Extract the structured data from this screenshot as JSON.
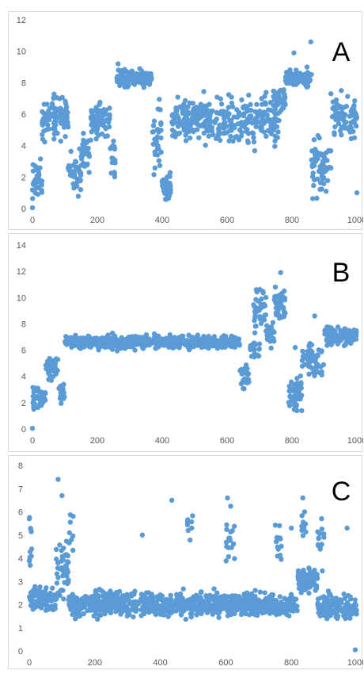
{
  "chart_data": [
    {
      "type": "scatter",
      "panel_label": "A",
      "color": "#5b9bd5",
      "xlim": [
        0,
        1000
      ],
      "ylim": [
        0,
        12
      ],
      "xticks": [
        0,
        200,
        400,
        600,
        800,
        1000
      ],
      "xtick_labels": [
        "0",
        "200",
        "400",
        "600",
        "800",
        "1000"
      ],
      "yticks": [
        0,
        2,
        4,
        6,
        8,
        10,
        12
      ],
      "ytick_labels": [
        "0",
        "2",
        "4",
        "6",
        "8",
        "10",
        "12"
      ],
      "segments": [
        {
          "x": [
            0,
            30
          ],
          "center": 1.7,
          "spread": 0.7,
          "count": 40
        },
        {
          "x": [
            30,
            110
          ],
          "center": 5.8,
          "spread": 0.9,
          "count": 100
        },
        {
          "x": [
            110,
            150
          ],
          "center": 2.4,
          "spread": 1.0,
          "count": 40
        },
        {
          "x": [
            150,
            180
          ],
          "center": 3.6,
          "spread": 0.9,
          "count": 30
        },
        {
          "x": [
            180,
            240
          ],
          "center": 5.8,
          "spread": 0.9,
          "count": 70
        },
        {
          "x": [
            240,
            260
          ],
          "center": 3.0,
          "spread": 1.0,
          "count": 15
        },
        {
          "x": [
            260,
            370
          ],
          "center": 8.3,
          "spread": 0.35,
          "count": 150
        },
        {
          "x": [
            370,
            400
          ],
          "center": 4.5,
          "spread": 2.0,
          "count": 30
        },
        {
          "x": [
            400,
            430
          ],
          "center": 1.5,
          "spread": 0.6,
          "count": 40
        },
        {
          "x": [
            430,
            760
          ],
          "center": 5.6,
          "spread": 1.0,
          "count": 330
        },
        {
          "x": [
            740,
            780
          ],
          "center": 7.0,
          "spread": 0.7,
          "count": 40
        },
        {
          "x": [
            780,
            860
          ],
          "center": 8.3,
          "spread": 0.35,
          "count": 120
        },
        {
          "x": [
            860,
            920
          ],
          "center": 2.8,
          "spread": 1.3,
          "count": 60
        },
        {
          "x": [
            920,
            1000
          ],
          "center": 5.8,
          "spread": 0.8,
          "count": 80
        }
      ],
      "outliers": [
        [
          0,
          0.05
        ],
        [
          858,
          10.6
        ],
        [
          806,
          9.9
        ],
        [
          920,
          7.3
        ],
        [
          952,
          7.5
        ],
        [
          264,
          9.2
        ],
        [
          1000,
          1.0
        ],
        [
          30,
          4.7
        ]
      ]
    },
    {
      "type": "scatter",
      "panel_label": "B",
      "color": "#5b9bd5",
      "xlim": [
        0,
        1000
      ],
      "ylim": [
        0,
        14
      ],
      "xticks": [
        0,
        200,
        400,
        600,
        800,
        1000
      ],
      "xtick_labels": [
        "0",
        "200",
        "400",
        "600",
        "800",
        "1000"
      ],
      "yticks": [
        0,
        2,
        4,
        6,
        8,
        10,
        12,
        14
      ],
      "ytick_labels": [
        "0",
        "2",
        "4",
        "6",
        "8",
        "10",
        "12",
        "14"
      ],
      "segments": [
        {
          "x": [
            0,
            40
          ],
          "center": 2.4,
          "spread": 0.6,
          "count": 45
        },
        {
          "x": [
            40,
            80
          ],
          "center": 4.6,
          "spread": 0.7,
          "count": 40
        },
        {
          "x": [
            80,
            100
          ],
          "center": 2.7,
          "spread": 0.6,
          "count": 20
        },
        {
          "x": [
            100,
            640
          ],
          "center": 6.6,
          "spread": 0.35,
          "count": 520
        },
        {
          "x": [
            640,
            670
          ],
          "center": 4.2,
          "spread": 0.7,
          "count": 25
        },
        {
          "x": [
            670,
            700
          ],
          "center": 6.3,
          "spread": 0.6,
          "count": 20
        },
        {
          "x": [
            680,
            720
          ],
          "center": 9.0,
          "spread": 1.0,
          "count": 35
        },
        {
          "x": [
            720,
            745
          ],
          "center": 7.2,
          "spread": 0.7,
          "count": 25
        },
        {
          "x": [
            745,
            780
          ],
          "center": 9.6,
          "spread": 0.8,
          "count": 40
        },
        {
          "x": [
            790,
            830
          ],
          "center": 2.7,
          "spread": 0.8,
          "count": 45
        },
        {
          "x": [
            830,
            900
          ],
          "center": 5.2,
          "spread": 0.9,
          "count": 60
        },
        {
          "x": [
            900,
            1000
          ],
          "center": 7.1,
          "spread": 0.45,
          "count": 120
        }
      ],
      "outliers": [
        [
          0,
          0.05
        ],
        [
          765,
          11.9
        ],
        [
          690,
          10.6
        ],
        [
          870,
          8.6
        ],
        [
          810,
          6.2
        ],
        [
          815,
          1.4
        ],
        [
          830,
          1.4
        ],
        [
          590,
          7.1
        ]
      ]
    },
    {
      "type": "scatter",
      "panel_label": "C",
      "color": "#5b9bd5",
      "xlim": [
        0,
        1000
      ],
      "ylim": [
        0,
        8
      ],
      "xticks": [
        0,
        200,
        400,
        600,
        800,
        1000
      ],
      "xtick_labels": [
        "0",
        "200",
        "400",
        "600",
        "800",
        "1000"
      ],
      "yticks": [
        0,
        1,
        2,
        3,
        4,
        5,
        6,
        7,
        8
      ],
      "ytick_labels": [
        "0",
        "1",
        "2",
        "3",
        "4",
        "5",
        "6",
        "7",
        "8"
      ],
      "segments": [
        {
          "x": [
            0,
            80
          ],
          "center": 2.2,
          "spread": 0.35,
          "count": 110
        },
        {
          "x": [
            80,
            120
          ],
          "center": 3.5,
          "spread": 0.8,
          "count": 50
        },
        {
          "x": [
            120,
            820
          ],
          "center": 2.0,
          "spread": 0.35,
          "count": 900
        },
        {
          "x": [
            820,
            880
          ],
          "center": 3.0,
          "spread": 0.35,
          "count": 90
        },
        {
          "x": [
            880,
            1000
          ],
          "center": 1.9,
          "spread": 0.35,
          "count": 150
        },
        {
          "x": [
            0,
            10
          ],
          "center": 4.3,
          "spread": 1.2,
          "count": 12
        },
        {
          "x": [
            600,
            630
          ],
          "center": 5.0,
          "spread": 0.9,
          "count": 18
        },
        {
          "x": [
            750,
            770
          ],
          "center": 4.8,
          "spread": 0.6,
          "count": 14
        },
        {
          "x": [
            830,
            845
          ],
          "center": 5.5,
          "spread": 0.7,
          "count": 12
        },
        {
          "x": [
            880,
            900
          ],
          "center": 4.8,
          "spread": 0.7,
          "count": 14
        },
        {
          "x": [
            480,
            500
          ],
          "center": 5.3,
          "spread": 0.7,
          "count": 8
        },
        {
          "x": [
            120,
            135
          ],
          "center": 5.0,
          "spread": 0.6,
          "count": 8
        }
      ],
      "outliers": [
        [
          88,
          7.4
        ],
        [
          100,
          6.7
        ],
        [
          435,
          6.5
        ],
        [
          605,
          6.6
        ],
        [
          835,
          6.6
        ],
        [
          995,
          0.05
        ],
        [
          0,
          5.7
        ],
        [
          345,
          5.0
        ],
        [
          800,
          5.3
        ],
        [
          970,
          5.3
        ],
        [
          965,
          1.4
        ]
      ]
    }
  ]
}
